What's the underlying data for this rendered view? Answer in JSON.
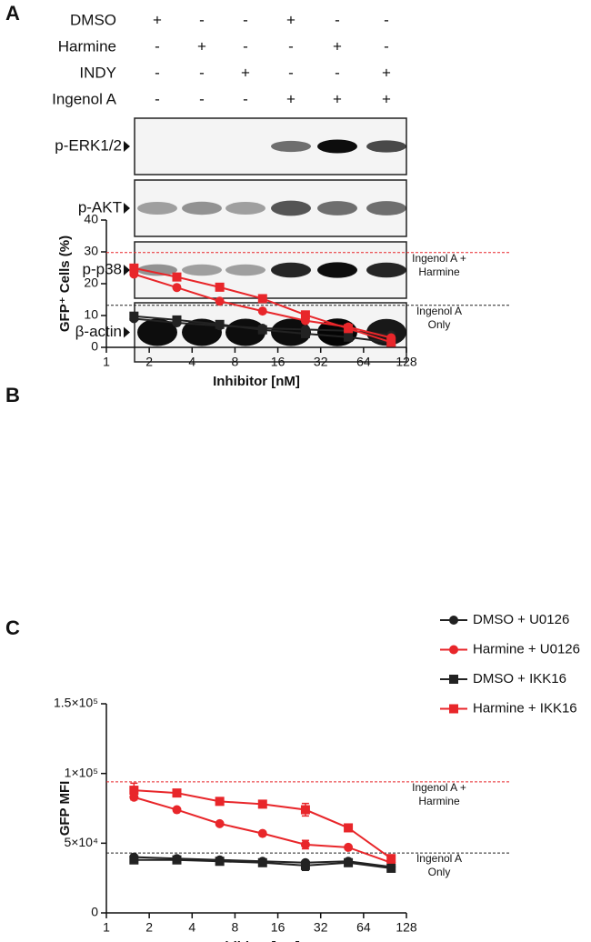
{
  "panel_labels": [
    "A",
    "B",
    "C"
  ],
  "blot": {
    "conditions": [
      {
        "name": "DMSO",
        "marks": [
          "+",
          "-",
          "-",
          "+",
          "-",
          "-"
        ]
      },
      {
        "name": "Harmine",
        "marks": [
          "-",
          "+",
          "-",
          "-",
          "+",
          "-"
        ]
      },
      {
        "name": "INDY",
        "marks": [
          "-",
          "-",
          "+",
          "-",
          "-",
          "+"
        ]
      },
      {
        "name": "Ingenol A",
        "marks": [
          "-",
          "-",
          "-",
          "+",
          "+",
          "+"
        ]
      }
    ],
    "bands": [
      "p-ERK1/2",
      "p-AKT",
      "p-p38",
      "β-actin"
    ]
  },
  "chart_data": [
    {
      "type": "line",
      "y_label": "GFP⁺ Cells (%)",
      "x_label": "Inhibitor [nM]",
      "x_scale": "log2",
      "xlim": [
        1,
        128
      ],
      "xticks": [
        1,
        2,
        4,
        8,
        16,
        32,
        64,
        128
      ],
      "ylim": [
        0,
        40
      ],
      "yticks": [
        0,
        10,
        20,
        30,
        40
      ],
      "x": [
        1.5625,
        3.125,
        6.25,
        12.5,
        25,
        50,
        100
      ],
      "series": [
        {
          "name": "DMSO + U0126",
          "color": "#222222",
          "marker": "circle",
          "values": [
            9.0,
            7.7,
            6.8,
            6.0,
            5.6,
            5.2,
            3.9
          ]
        },
        {
          "name": "Harmine + U0126",
          "color": "#e8262a",
          "marker": "circle",
          "values": [
            23.0,
            18.8,
            14.5,
            11.4,
            8.4,
            6.4,
            3.0
          ]
        },
        {
          "name": "DMSO + IKK16",
          "color": "#222222",
          "marker": "square",
          "values": [
            9.8,
            8.6,
            7.2,
            5.5,
            4.3,
            3.2,
            1.5
          ]
        },
        {
          "name": "Harmine + IKK16",
          "color": "#e8262a",
          "marker": "square",
          "values": [
            24.9,
            22.1,
            18.9,
            15.3,
            10.2,
            5.9,
            1.6
          ]
        }
      ],
      "ref_lines": [
        {
          "value": 29.8,
          "color": "#e8262a",
          "label": [
            "Ingenol A +",
            "Harmine"
          ]
        },
        {
          "value": 13.2,
          "color": "#222222",
          "label": [
            "Ingenol A",
            "Only"
          ]
        }
      ]
    },
    {
      "type": "line",
      "y_label": "GFP MFI",
      "x_label": "Inhibitor [nM]",
      "x_scale": "log2",
      "xlim": [
        1,
        128
      ],
      "xticks": [
        1,
        2,
        4,
        8,
        16,
        32,
        64,
        128
      ],
      "ylim": [
        0,
        150000
      ],
      "yticks": [
        0,
        {
          "value": 50000,
          "label": "5×10⁴"
        },
        {
          "value": 100000,
          "label": "1×10⁵"
        },
        {
          "value": 150000,
          "label": "1.5×10⁵"
        }
      ],
      "x": [
        1.5625,
        3.125,
        6.25,
        12.5,
        25,
        50,
        100
      ],
      "series": [
        {
          "color": "#222222",
          "marker": "circle",
          "values": [
            40000,
            39000,
            38000,
            37000,
            36000,
            37000,
            33000
          ],
          "errors": [
            1500,
            1000,
            1000,
            1000,
            1500,
            1000,
            1000
          ]
        },
        {
          "color": "#e8262a",
          "marker": "circle",
          "values": [
            83000,
            74000,
            64000,
            57000,
            49000,
            47000,
            36000
          ],
          "errors": [
            2000,
            1000,
            1000,
            1000,
            3000,
            1000,
            1500
          ]
        },
        {
          "color": "#222222",
          "marker": "square",
          "values": [
            38000,
            38000,
            37000,
            36000,
            34000,
            36000,
            32000
          ],
          "errors": [
            2000,
            1500,
            1500,
            1500,
            3500,
            1500,
            1000
          ]
        },
        {
          "color": "#e8262a",
          "marker": "square",
          "values": [
            88000,
            86000,
            80000,
            78000,
            74000,
            61000,
            39000
          ],
          "errors": [
            5000,
            1500,
            1500,
            2500,
            4500,
            1500,
            2000
          ]
        }
      ],
      "ref_lines": [
        {
          "value": 94000,
          "color": "#e8262a",
          "label": [
            "Ingenol A +",
            "Harmine"
          ]
        },
        {
          "value": 43000,
          "color": "#222222",
          "label": [
            "Ingenol A",
            "Only"
          ]
        }
      ]
    }
  ]
}
